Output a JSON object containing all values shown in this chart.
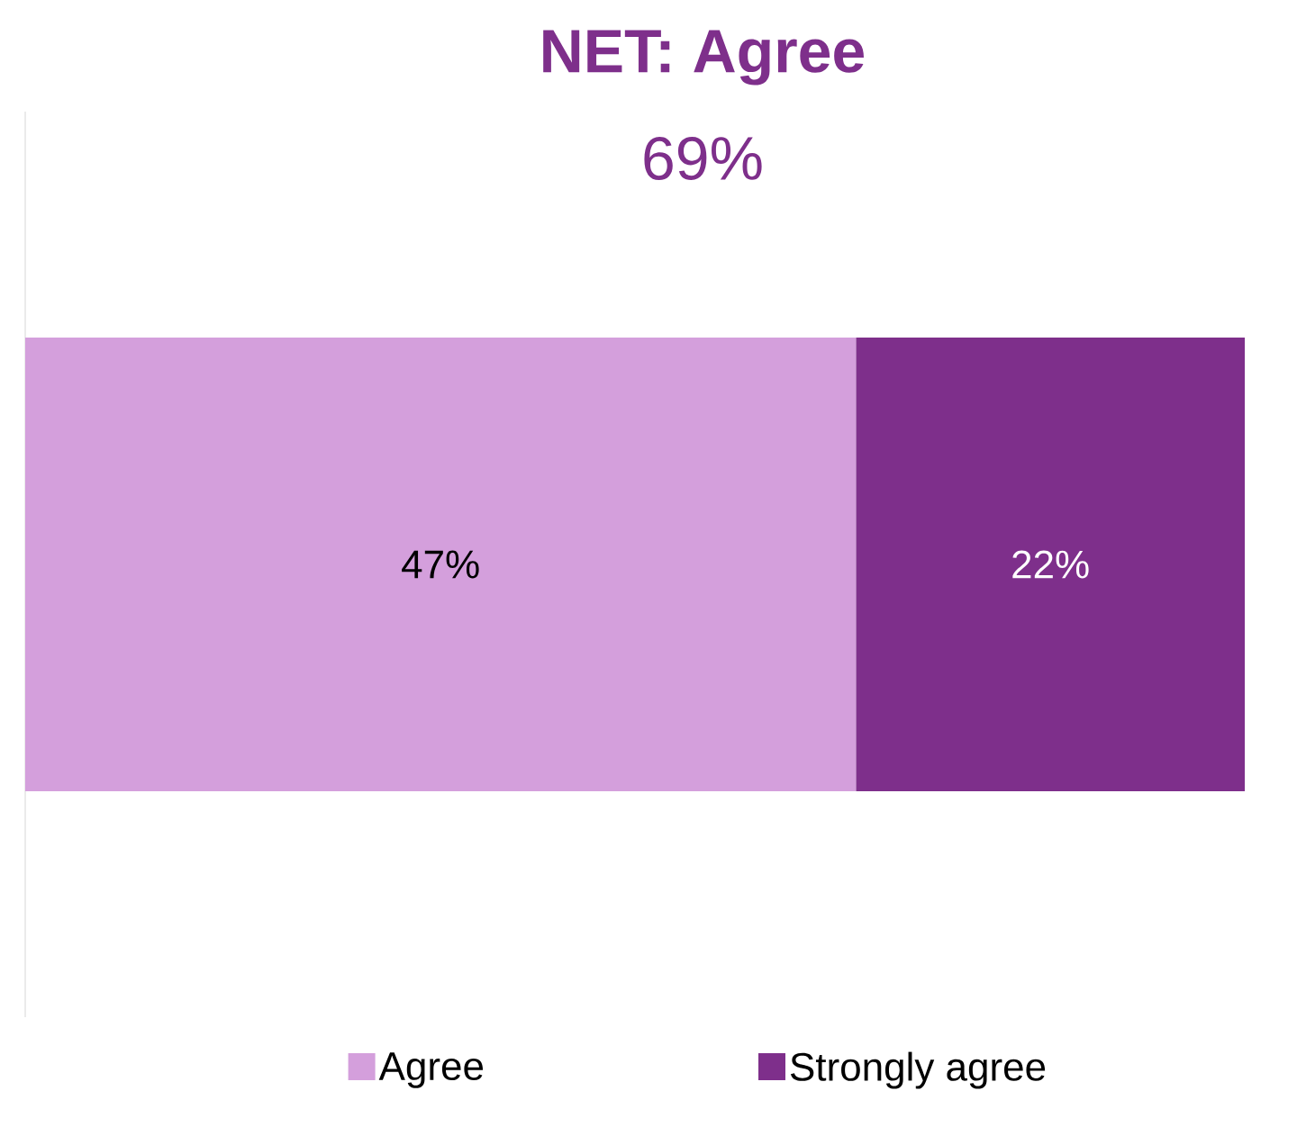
{
  "chart_data": {
    "type": "bar",
    "orientation": "horizontal",
    "stacked": true,
    "title": "NET: Agree",
    "subtitle": "69%",
    "categories": [
      null
    ],
    "series": [
      {
        "name": "Agree",
        "color": "#d49fdc",
        "values": [
          47
        ],
        "value_labels": [
          "47%"
        ]
      },
      {
        "name": "Strongly agree",
        "color": "#7e2f8b",
        "values": [
          22
        ],
        "value_labels": [
          "22%"
        ]
      }
    ],
    "legend": "bottom"
  }
}
